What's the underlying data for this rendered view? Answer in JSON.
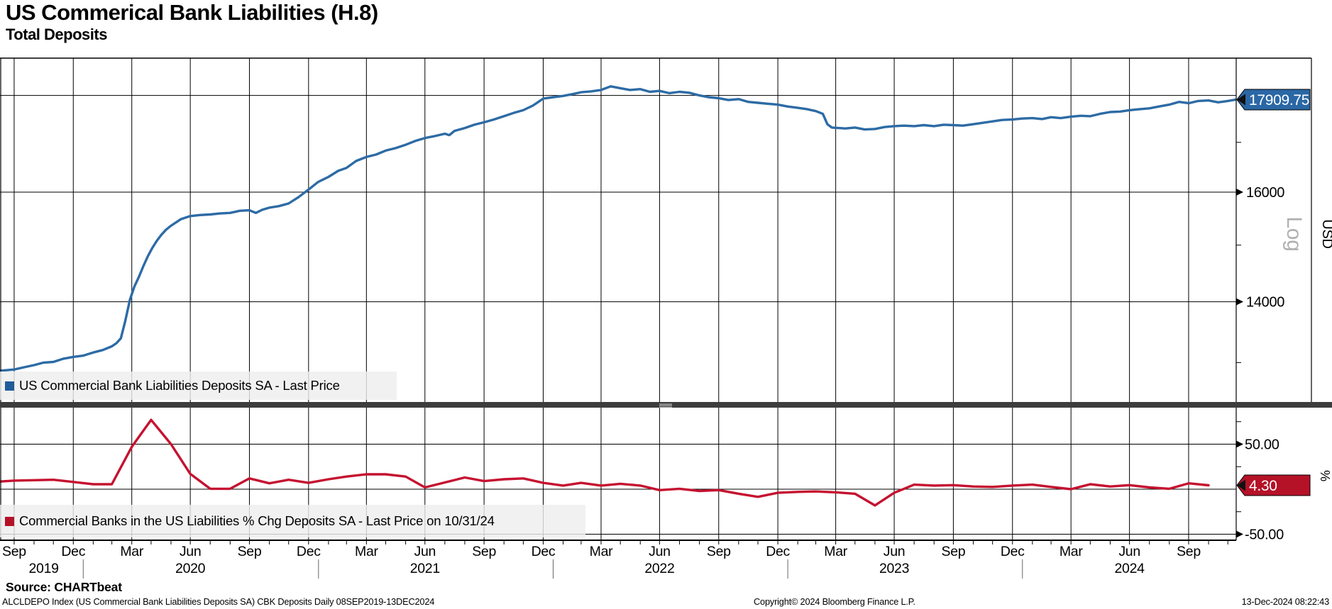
{
  "header": {
    "title": "US Commerical Bank Liabilities (H.8)",
    "subtitle": "Total Deposits"
  },
  "colors": {
    "blue_line": "#2d6ba5",
    "blue_badge": "#2a67a5",
    "red_line": "#c51230",
    "red_badge": "#b51228",
    "grid": "#000000",
    "divider": "#3d3d3d",
    "divider_grip": "#b5b5b5",
    "log_label": "#b0b0b0",
    "legend_swatch_blue": "#1f5c99",
    "legend_swatch_red": "#b51228",
    "year_separator": "#666666"
  },
  "panel_top": {
    "legend": {
      "label": "US Commercial Bank Liabilities Deposits SA - Last Price"
    },
    "y_axis": {
      "unit": "USD",
      "scale_label": "Log",
      "last_price_badge": "17909.75",
      "labeled_ticks": [
        {
          "label": "16000",
          "value": 16000
        },
        {
          "label": "14000",
          "value": 14000
        }
      ],
      "gridline_values": [
        18000,
        16000,
        14000
      ],
      "minor_tick_values": [
        17000,
        15000,
        13000
      ]
    }
  },
  "panel_bottom": {
    "legend": {
      "label": "Commercial Banks in the US Liabilities % Chg Deposits SA - Last Price on 10/31/24"
    },
    "y_axis": {
      "unit": "%",
      "last_price_badge": "4.30",
      "labeled_ticks": [
        {
          "label": "50.00",
          "value": 50
        },
        {
          "label": "-50.00",
          "value": -50
        }
      ],
      "gridline_values": [
        50,
        0,
        -50
      ],
      "minor_tick_values": [
        75,
        25,
        -25
      ]
    }
  },
  "x_axis": {
    "range": {
      "start": "2019-09-08",
      "end": "2024-12-13"
    },
    "quarter_ticks": [
      {
        "label": "Sep",
        "date": "2019-09-30"
      },
      {
        "label": "Dec",
        "date": "2019-12-31"
      },
      {
        "label": "Mar",
        "date": "2020-03-31"
      },
      {
        "label": "Jun",
        "date": "2020-06-30"
      },
      {
        "label": "Sep",
        "date": "2020-09-30"
      },
      {
        "label": "Dec",
        "date": "2020-12-31"
      },
      {
        "label": "Mar",
        "date": "2021-03-31"
      },
      {
        "label": "Jun",
        "date": "2021-06-30"
      },
      {
        "label": "Sep",
        "date": "2021-09-30"
      },
      {
        "label": "Dec",
        "date": "2021-12-31"
      },
      {
        "label": "Mar",
        "date": "2022-03-31"
      },
      {
        "label": "Jun",
        "date": "2022-06-30"
      },
      {
        "label": "Sep",
        "date": "2022-09-30"
      },
      {
        "label": "Dec",
        "date": "2022-12-31"
      },
      {
        "label": "Mar",
        "date": "2023-03-31"
      },
      {
        "label": "Jun",
        "date": "2023-06-30"
      },
      {
        "label": "Sep",
        "date": "2023-09-30"
      },
      {
        "label": "Dec",
        "date": "2023-12-31"
      },
      {
        "label": "Mar",
        "date": "2024-03-31"
      },
      {
        "label": "Jun",
        "date": "2024-06-30"
      },
      {
        "label": "Sep",
        "date": "2024-09-30"
      }
    ],
    "year_labels": [
      {
        "label": "2019",
        "date": "2019-11-15"
      },
      {
        "label": "2020",
        "date": "2020-06-30"
      },
      {
        "label": "2021",
        "date": "2021-06-30"
      },
      {
        "label": "2022",
        "date": "2022-06-30"
      },
      {
        "label": "2023",
        "date": "2023-06-30"
      },
      {
        "label": "2024",
        "date": "2024-06-30"
      }
    ],
    "year_separator_dates": [
      "2019-12-31",
      "2020-12-31",
      "2021-12-31",
      "2022-12-31",
      "2023-12-31"
    ]
  },
  "footer": {
    "source": "Source: CHARTbeat",
    "description": "ALCLDEPO Index (US Commercial Bank Liabilities Deposits SA) CBK Deposits  Daily 08SEP2019-13DEC2024",
    "copyright": "Copyright© 2024 Bloomberg Finance L.P.",
    "timestamp": "13-Dec-2024 08:22:43"
  },
  "chart_data": [
    {
      "type": "line",
      "panel": "top",
      "name": "US Commercial Bank Liabilities Deposits SA - Last Price",
      "color": "#2d6ba5",
      "axis_scale": "log",
      "ylim_approx": [
        12300,
        18900
      ],
      "last_value": 17909.75,
      "points": [
        [
          "2019-09-08",
          12870
        ],
        [
          "2019-09-30",
          12890
        ],
        [
          "2019-10-15",
          12925
        ],
        [
          "2019-10-31",
          12960
        ],
        [
          "2019-11-15",
          13000
        ],
        [
          "2019-11-30",
          13010
        ],
        [
          "2019-12-15",
          13060
        ],
        [
          "2019-12-31",
          13090
        ],
        [
          "2020-01-15",
          13110
        ],
        [
          "2020-01-31",
          13160
        ],
        [
          "2020-02-15",
          13200
        ],
        [
          "2020-02-29",
          13260
        ],
        [
          "2020-03-07",
          13310
        ],
        [
          "2020-03-14",
          13390
        ],
        [
          "2020-03-21",
          13680
        ],
        [
          "2020-03-28",
          14030
        ],
        [
          "2020-04-04",
          14260
        ],
        [
          "2020-04-11",
          14430
        ],
        [
          "2020-04-18",
          14620
        ],
        [
          "2020-04-25",
          14800
        ],
        [
          "2020-05-02",
          14950
        ],
        [
          "2020-05-09",
          15080
        ],
        [
          "2020-05-16",
          15190
        ],
        [
          "2020-05-23",
          15280
        ],
        [
          "2020-05-30",
          15350
        ],
        [
          "2020-06-15",
          15480
        ],
        [
          "2020-06-30",
          15540
        ],
        [
          "2020-07-15",
          15560
        ],
        [
          "2020-07-31",
          15570
        ],
        [
          "2020-08-15",
          15590
        ],
        [
          "2020-08-31",
          15600
        ],
        [
          "2020-09-15",
          15640
        ],
        [
          "2020-09-30",
          15650
        ],
        [
          "2020-10-10",
          15600
        ],
        [
          "2020-10-20",
          15660
        ],
        [
          "2020-10-31",
          15700
        ],
        [
          "2020-11-15",
          15730
        ],
        [
          "2020-11-30",
          15780
        ],
        [
          "2020-12-15",
          15900
        ],
        [
          "2020-12-31",
          16050
        ],
        [
          "2021-01-15",
          16200
        ],
        [
          "2021-01-31",
          16300
        ],
        [
          "2021-02-15",
          16420
        ],
        [
          "2021-02-28",
          16480
        ],
        [
          "2021-03-15",
          16620
        ],
        [
          "2021-03-31",
          16700
        ],
        [
          "2021-04-15",
          16750
        ],
        [
          "2021-04-30",
          16830
        ],
        [
          "2021-05-15",
          16880
        ],
        [
          "2021-05-31",
          16950
        ],
        [
          "2021-06-15",
          17030
        ],
        [
          "2021-06-30",
          17090
        ],
        [
          "2021-07-15",
          17130
        ],
        [
          "2021-07-31",
          17180
        ],
        [
          "2021-08-07",
          17150
        ],
        [
          "2021-08-15",
          17240
        ],
        [
          "2021-08-31",
          17300
        ],
        [
          "2021-09-15",
          17370
        ],
        [
          "2021-09-30",
          17420
        ],
        [
          "2021-10-15",
          17480
        ],
        [
          "2021-10-31",
          17550
        ],
        [
          "2021-11-15",
          17620
        ],
        [
          "2021-11-30",
          17680
        ],
        [
          "2021-12-15",
          17780
        ],
        [
          "2021-12-31",
          17930
        ],
        [
          "2022-01-15",
          17960
        ],
        [
          "2022-01-31",
          17990
        ],
        [
          "2022-02-15",
          18030
        ],
        [
          "2022-02-28",
          18070
        ],
        [
          "2022-03-15",
          18090
        ],
        [
          "2022-03-31",
          18120
        ],
        [
          "2022-04-15",
          18200
        ],
        [
          "2022-04-30",
          18160
        ],
        [
          "2022-05-15",
          18120
        ],
        [
          "2022-05-31",
          18140
        ],
        [
          "2022-06-15",
          18080
        ],
        [
          "2022-06-30",
          18100
        ],
        [
          "2022-07-15",
          18050
        ],
        [
          "2022-07-31",
          18080
        ],
        [
          "2022-08-15",
          18060
        ],
        [
          "2022-08-31",
          18000
        ],
        [
          "2022-09-15",
          17960
        ],
        [
          "2022-09-30",
          17940
        ],
        [
          "2022-10-15",
          17900
        ],
        [
          "2022-10-31",
          17920
        ],
        [
          "2022-11-15",
          17860
        ],
        [
          "2022-11-30",
          17840
        ],
        [
          "2022-12-15",
          17820
        ],
        [
          "2022-12-31",
          17800
        ],
        [
          "2023-01-15",
          17760
        ],
        [
          "2023-01-31",
          17730
        ],
        [
          "2023-02-15",
          17700
        ],
        [
          "2023-02-28",
          17660
        ],
        [
          "2023-03-11",
          17600
        ],
        [
          "2023-03-18",
          17380
        ],
        [
          "2023-03-25",
          17310
        ],
        [
          "2023-04-15",
          17290
        ],
        [
          "2023-04-30",
          17310
        ],
        [
          "2023-05-15",
          17270
        ],
        [
          "2023-05-31",
          17280
        ],
        [
          "2023-06-15",
          17320
        ],
        [
          "2023-06-30",
          17340
        ],
        [
          "2023-07-15",
          17350
        ],
        [
          "2023-07-31",
          17340
        ],
        [
          "2023-08-15",
          17360
        ],
        [
          "2023-08-31",
          17340
        ],
        [
          "2023-09-15",
          17370
        ],
        [
          "2023-09-30",
          17360
        ],
        [
          "2023-10-15",
          17350
        ],
        [
          "2023-10-31",
          17380
        ],
        [
          "2023-11-15",
          17410
        ],
        [
          "2023-11-30",
          17440
        ],
        [
          "2023-12-15",
          17470
        ],
        [
          "2023-12-31",
          17480
        ],
        [
          "2024-01-15",
          17500
        ],
        [
          "2024-01-31",
          17510
        ],
        [
          "2024-02-15",
          17490
        ],
        [
          "2024-02-29",
          17530
        ],
        [
          "2024-03-15",
          17510
        ],
        [
          "2024-03-31",
          17540
        ],
        [
          "2024-04-15",
          17560
        ],
        [
          "2024-04-30",
          17550
        ],
        [
          "2024-05-15",
          17600
        ],
        [
          "2024-05-31",
          17640
        ],
        [
          "2024-06-15",
          17650
        ],
        [
          "2024-06-30",
          17680
        ],
        [
          "2024-07-15",
          17700
        ],
        [
          "2024-07-31",
          17720
        ],
        [
          "2024-08-15",
          17760
        ],
        [
          "2024-08-31",
          17800
        ],
        [
          "2024-09-15",
          17860
        ],
        [
          "2024-09-30",
          17830
        ],
        [
          "2024-10-15",
          17880
        ],
        [
          "2024-10-31",
          17890
        ],
        [
          "2024-11-15",
          17850
        ],
        [
          "2024-11-30",
          17880
        ],
        [
          "2024-12-13",
          17909.75
        ]
      ]
    },
    {
      "type": "line",
      "panel": "bottom",
      "name": "Commercial Banks in the US Liabilities % Chg Deposits SA",
      "color": "#c51230",
      "axis_scale": "linear",
      "ylim_approx": [
        -60,
        90
      ],
      "last_value": 4.3,
      "points": [
        [
          "2019-09-08",
          8.5
        ],
        [
          "2019-09-30",
          9.5
        ],
        [
          "2019-10-31",
          10
        ],
        [
          "2019-11-30",
          10.5
        ],
        [
          "2019-12-31",
          8
        ],
        [
          "2020-01-31",
          5.5
        ],
        [
          "2020-02-29",
          5.5
        ],
        [
          "2020-03-31",
          47
        ],
        [
          "2020-04-30",
          77
        ],
        [
          "2020-05-31",
          50
        ],
        [
          "2020-06-30",
          17
        ],
        [
          "2020-07-31",
          0.5
        ],
        [
          "2020-08-31",
          0.5
        ],
        [
          "2020-09-30",
          12
        ],
        [
          "2020-10-31",
          6.5
        ],
        [
          "2020-11-30",
          10.5
        ],
        [
          "2020-12-31",
          7
        ],
        [
          "2021-01-31",
          11
        ],
        [
          "2021-02-28",
          14
        ],
        [
          "2021-03-31",
          16.5
        ],
        [
          "2021-04-30",
          16.5
        ],
        [
          "2021-05-31",
          14
        ],
        [
          "2021-06-30",
          2
        ],
        [
          "2021-07-31",
          7.5
        ],
        [
          "2021-08-31",
          13
        ],
        [
          "2021-09-30",
          9
        ],
        [
          "2021-10-31",
          11
        ],
        [
          "2021-11-30",
          12
        ],
        [
          "2021-12-31",
          7
        ],
        [
          "2022-01-31",
          4
        ],
        [
          "2022-02-28",
          7
        ],
        [
          "2022-03-31",
          4
        ],
        [
          "2022-04-30",
          6
        ],
        [
          "2022-05-31",
          4
        ],
        [
          "2022-06-30",
          -1
        ],
        [
          "2022-07-31",
          0.5
        ],
        [
          "2022-08-31",
          -2
        ],
        [
          "2022-09-30",
          -1
        ],
        [
          "2022-10-31",
          -5
        ],
        [
          "2022-11-30",
          -8.5
        ],
        [
          "2022-12-31",
          -4
        ],
        [
          "2023-01-31",
          -3
        ],
        [
          "2023-02-28",
          -2.5
        ],
        [
          "2023-03-31",
          -3.5
        ],
        [
          "2023-04-30",
          -5
        ],
        [
          "2023-05-31",
          -18
        ],
        [
          "2023-06-30",
          -4
        ],
        [
          "2023-07-31",
          5
        ],
        [
          "2023-08-31",
          4
        ],
        [
          "2023-09-30",
          4.5
        ],
        [
          "2023-10-31",
          3
        ],
        [
          "2023-11-30",
          2.5
        ],
        [
          "2023-12-31",
          4
        ],
        [
          "2024-01-31",
          5
        ],
        [
          "2024-02-29",
          2.5
        ],
        [
          "2024-03-31",
          0
        ],
        [
          "2024-04-30",
          5.5
        ],
        [
          "2024-05-31",
          3
        ],
        [
          "2024-06-30",
          4.5
        ],
        [
          "2024-07-31",
          2
        ],
        [
          "2024-08-31",
          0.5
        ],
        [
          "2024-09-30",
          6.5
        ],
        [
          "2024-10-31",
          4.3
        ]
      ]
    }
  ]
}
